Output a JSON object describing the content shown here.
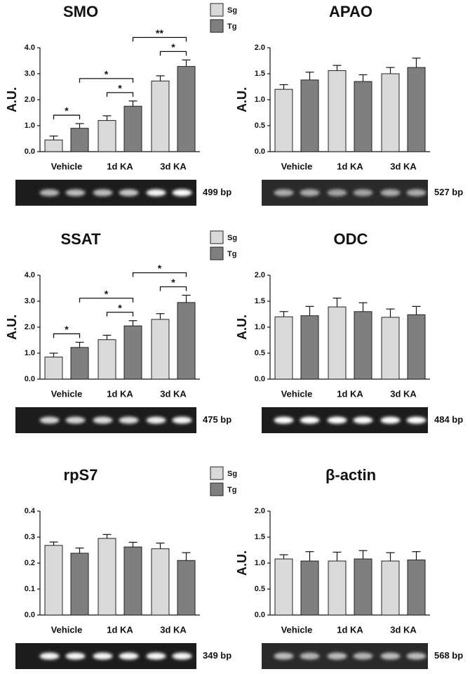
{
  "chart_data": [
    {
      "type": "bar",
      "title": "SMO",
      "ylabel": "A.U.",
      "categories": [
        "Vehicle",
        "1d KA",
        "3d KA"
      ],
      "series": [
        {
          "name": "Sg",
          "color": "#d9d9d9",
          "values": [
            0.45,
            1.2,
            2.72
          ],
          "errors": [
            0.15,
            0.18,
            0.2
          ]
        },
        {
          "name": "Tg",
          "color": "#7f7f7f",
          "values": [
            0.9,
            1.75,
            3.28
          ],
          "errors": [
            0.18,
            0.2,
            0.25
          ]
        }
      ],
      "ylim": [
        0,
        4
      ],
      "yticks": [
        {
          "value": 0,
          "label": "0.0"
        },
        {
          "value": 1,
          "label": "1.0"
        },
        {
          "value": 2,
          "label": "2.0"
        },
        {
          "value": 3,
          "label": "3.0"
        },
        {
          "value": 4,
          "label": "4.0"
        }
      ],
      "legend": true,
      "band_label": "499 bp",
      "annotations": [
        {
          "text": "*",
          "bars": [
            [
              0,
              0
            ],
            [
              1,
              0
            ]
          ]
        },
        {
          "text": "*",
          "bars": [
            [
              0,
              1
            ],
            [
              1,
              1
            ]
          ]
        },
        {
          "text": "*",
          "bars": [
            [
              1,
              0
            ],
            [
              1,
              1
            ]
          ]
        },
        {
          "text": "*",
          "bars": [
            [
              0,
              2
            ],
            [
              1,
              2
            ]
          ]
        },
        {
          "text": "**",
          "bars": [
            [
              1,
              1
            ],
            [
              1,
              2
            ]
          ]
        }
      ]
    },
    {
      "type": "bar",
      "title": "APAO",
      "ylabel": "A.U.",
      "categories": [
        "Vehicle",
        "1d KA",
        "3d KA"
      ],
      "series": [
        {
          "color": "#d9d9d9",
          "values": [
            1.2,
            1.56,
            1.5
          ],
          "errors": [
            0.09,
            0.1,
            0.12
          ]
        },
        {
          "color": "#7f7f7f",
          "values": [
            1.38,
            1.35,
            1.62
          ],
          "errors": [
            0.15,
            0.13,
            0.18
          ]
        }
      ],
      "ylim": [
        0,
        2
      ],
      "yticks": [
        {
          "value": 0,
          "label": "0.0"
        },
        0.5,
        {
          "value": 1,
          "label": "1.0"
        },
        1.5,
        {
          "value": 2,
          "label": "2.0"
        }
      ],
      "legend": false,
      "band_label": "527 bp",
      "annotations": []
    },
    {
      "type": "bar",
      "title": "SSAT",
      "ylabel": "A.U.",
      "categories": [
        "Vehicle",
        "1d KA",
        "3d KA"
      ],
      "series": [
        {
          "name": "Sg",
          "color": "#d9d9d9",
          "values": [
            0.85,
            1.52,
            2.3
          ],
          "errors": [
            0.15,
            0.17,
            0.22
          ]
        },
        {
          "name": "Tg",
          "color": "#7f7f7f",
          "values": [
            1.22,
            2.05,
            2.95
          ],
          "errors": [
            0.2,
            0.2,
            0.28
          ]
        }
      ],
      "ylim": [
        0,
        4
      ],
      "yticks": [
        {
          "value": 0,
          "label": "0.0"
        },
        {
          "value": 1,
          "label": "1.0"
        },
        {
          "value": 2,
          "label": "2.0"
        },
        {
          "value": 3,
          "label": "3.0"
        },
        {
          "value": 4,
          "label": "4.0"
        }
      ],
      "legend": true,
      "band_label": "475 bp",
      "annotations": [
        {
          "text": "*",
          "bars": [
            [
              0,
              0
            ],
            [
              1,
              0
            ]
          ]
        },
        {
          "text": "*",
          "bars": [
            [
              0,
              1
            ],
            [
              1,
              1
            ]
          ]
        },
        {
          "text": "*",
          "bars": [
            [
              1,
              0
            ],
            [
              1,
              1
            ]
          ]
        },
        {
          "text": "*",
          "bars": [
            [
              0,
              2
            ],
            [
              1,
              2
            ]
          ]
        },
        {
          "text": "*",
          "bars": [
            [
              1,
              1
            ],
            [
              1,
              2
            ]
          ]
        }
      ]
    },
    {
      "type": "bar",
      "title": "ODC",
      "ylabel": "A.U.",
      "categories": [
        "Vehicle",
        "1d KA",
        "3d KA"
      ],
      "series": [
        {
          "color": "#d9d9d9",
          "values": [
            1.2,
            1.39,
            1.19
          ],
          "errors": [
            0.1,
            0.17,
            0.16
          ]
        },
        {
          "color": "#7f7f7f",
          "values": [
            1.22,
            1.3,
            1.24
          ],
          "errors": [
            0.18,
            0.17,
            0.16
          ]
        }
      ],
      "ylim": [
        0,
        2
      ],
      "yticks": [
        {
          "value": 0,
          "label": "0.0"
        },
        0.5,
        {
          "value": 1,
          "label": "1.0"
        },
        1.5,
        {
          "value": 2,
          "label": "2.0"
        }
      ],
      "legend": false,
      "band_label": "484 bp",
      "annotations": []
    },
    {
      "type": "bar",
      "title": "rpS7",
      "categories": [
        "Vehicle",
        "1d KA",
        "3d KA"
      ],
      "series": [
        {
          "name": "Sg",
          "color": "#d9d9d9",
          "values": [
            0.268,
            0.295,
            0.255
          ],
          "errors": [
            0.013,
            0.015,
            0.022
          ]
        },
        {
          "name": "Tg",
          "color": "#7f7f7f",
          "values": [
            0.238,
            0.262,
            0.21
          ],
          "errors": [
            0.02,
            0.018,
            0.03
          ]
        }
      ],
      "ylim": [
        0,
        0.4
      ],
      "yticks": [
        {
          "value": 0,
          "label": "0.0"
        },
        0.1,
        0.2,
        0.3,
        0.4
      ],
      "legend": true,
      "band_label": "349 bp",
      "annotations": []
    },
    {
      "type": "bar",
      "title": "β-actin",
      "ylabel": "A.U.",
      "categories": [
        "Vehicle",
        "1d KA",
        "3d KA"
      ],
      "series": [
        {
          "color": "#d9d9d9",
          "values": [
            1.08,
            1.04,
            1.04
          ],
          "errors": [
            0.08,
            0.17,
            0.16
          ]
        },
        {
          "color": "#7f7f7f",
          "values": [
            1.04,
            1.08,
            1.06
          ],
          "errors": [
            0.18,
            0.16,
            0.16
          ]
        }
      ],
      "ylim": [
        0,
        2
      ],
      "yticks": [
        {
          "value": 0,
          "label": "0.0"
        },
        0.5,
        {
          "value": 1,
          "label": "1.0"
        },
        1.5,
        {
          "value": 2,
          "label": "2.0"
        }
      ],
      "legend": false,
      "band_label": "568 bp",
      "annotations": []
    }
  ]
}
